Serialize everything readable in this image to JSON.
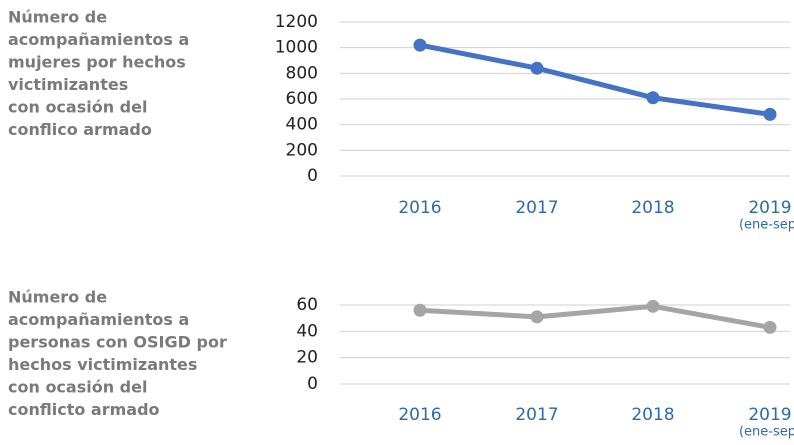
{
  "chart_data": [
    {
      "type": "line",
      "title": [
        "Número de",
        "acompañamientos a",
        "mujeres por hechos",
        "victimizantes",
        "con ocasión del",
        "conflico armado"
      ],
      "categories": [
        "2016",
        "2017",
        "2018",
        "2019"
      ],
      "category_note": "(ene-sep)",
      "series": [
        {
          "color": "#4472c4",
          "values": [
            1020,
            840,
            610,
            480
          ]
        }
      ],
      "ylim": [
        0,
        1200
      ],
      "yticks": [
        0,
        200,
        400,
        600,
        800,
        1000,
        1200
      ],
      "grid": true
    },
    {
      "type": "line",
      "title": [
        "Número de",
        "acompañamientos a",
        "personas con OSIGD por",
        "hechos victimizantes",
        "con ocasión del",
        "conflicto armado"
      ],
      "categories": [
        "2016",
        "2017",
        "2018",
        "2019"
      ],
      "category_note": "(ene-sep)",
      "series": [
        {
          "color": "#a5a5a5",
          "values": [
            56,
            51,
            59,
            43
          ]
        }
      ],
      "ylim": [
        0,
        60
      ],
      "yticks": [
        0,
        20,
        40,
        60
      ],
      "grid": true
    }
  ]
}
